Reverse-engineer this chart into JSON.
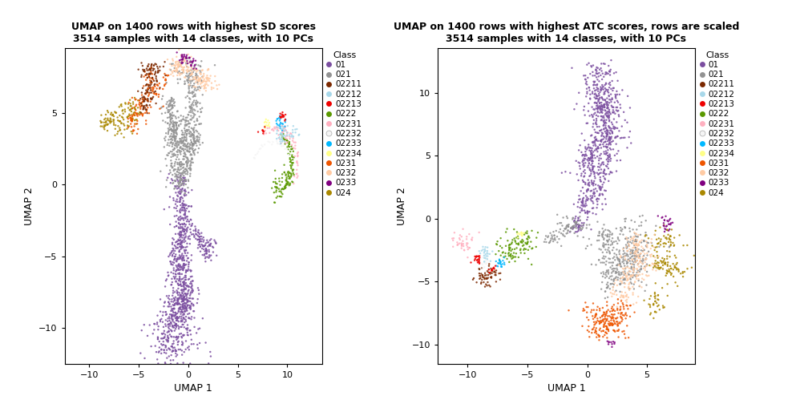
{
  "title1": "UMAP on 1400 rows with highest SD scores\n3514 samples with 14 classes, with 10 PCs",
  "title2": "UMAP on 1400 rows with highest ATC scores, rows are scaled\n3514 samples with 14 classes, with 10 PCs",
  "xlabel": "UMAP 1",
  "ylabel": "UMAP 2",
  "classes": [
    "01",
    "021",
    "02211",
    "02212",
    "02213",
    "0222",
    "02231",
    "02232",
    "02233",
    "02234",
    "0231",
    "0232",
    "0233",
    "024"
  ],
  "colors": {
    "01": "#7B4EA0",
    "021": "#929292",
    "02211": "#7B2800",
    "02212": "#A8D8EA",
    "02213": "#EE0000",
    "0222": "#5A9900",
    "02231": "#FFB0C0",
    "02232": "#F5F5F5",
    "02233": "#00B8FF",
    "02234": "#FFFF88",
    "0231": "#EE5500",
    "0232": "#FFCBA4",
    "0233": "#800080",
    "024": "#AA8800"
  },
  "xlim1": [
    -12.5,
    13.5
  ],
  "ylim1": [
    -12.5,
    9.5
  ],
  "xlim2": [
    -12.5,
    9.0
  ],
  "ylim2": [
    -11.5,
    13.5
  ],
  "xticks1": [
    -10,
    -5,
    0,
    5,
    10
  ],
  "yticks1": [
    -10,
    -5,
    0,
    5
  ],
  "xticks2": [
    -10,
    -5,
    0,
    5
  ],
  "yticks2": [
    -10,
    -5,
    0,
    5,
    10
  ],
  "point_size": 3,
  "alpha": 0.85
}
